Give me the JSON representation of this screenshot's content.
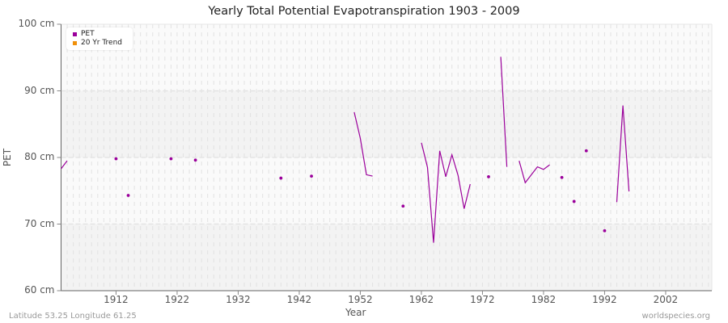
{
  "title": "Yearly Total Potential Evapotranspiration 1903 - 2009",
  "legend": [
    {
      "label": "PET",
      "color": "#9b009b"
    },
    {
      "label": "20 Yr Trend",
      "color": "#f0900a"
    }
  ],
  "footer": {
    "left": "Latitude 53.25 Longitude 61.25",
    "right": "worldspecies.org"
  },
  "axes": {
    "x_title": "Year",
    "y_title": "PET",
    "y_ticks": [
      "100 cm",
      "90 cm",
      "80 cm",
      "70 cm",
      "60 cm"
    ],
    "x_ticks": [
      "1912",
      "1922",
      "1932",
      "1942",
      "1952",
      "1962",
      "1972",
      "1982",
      "1992",
      "2002"
    ]
  },
  "chart_data": {
    "type": "line",
    "title": "Yearly Total Potential Evapotranspiration 1903 - 2009",
    "xlabel": "Year",
    "ylabel": "PET",
    "xlim": [
      1903,
      2009
    ],
    "ylim": [
      60,
      100
    ],
    "y_unit": "cm",
    "grid": true,
    "legend_position": "top-left",
    "series": [
      {
        "name": "PET",
        "color": "#9b009b",
        "points": [
          [
            1903,
            78.3
          ],
          [
            1904,
            79.5
          ],
          [
            1912,
            79.8
          ],
          [
            1914,
            74.3
          ],
          [
            1921,
            79.8
          ],
          [
            1925,
            79.6
          ],
          [
            1939,
            76.9
          ],
          [
            1944,
            77.2
          ],
          [
            1951,
            86.8
          ],
          [
            1952,
            82.9
          ],
          [
            1953,
            77.4
          ],
          [
            1954,
            77.2
          ],
          [
            1959,
            72.7
          ],
          [
            1962,
            82.2
          ],
          [
            1963,
            78.5
          ],
          [
            1964,
            67.2
          ],
          [
            1965,
            81.0
          ],
          [
            1966,
            77.1
          ],
          [
            1967,
            80.4
          ],
          [
            1968,
            77.3
          ],
          [
            1969,
            72.3
          ],
          [
            1970,
            76.0
          ],
          [
            1973,
            77.1
          ],
          [
            1975,
            95.1
          ],
          [
            1976,
            78.6
          ],
          [
            1978,
            79.5
          ],
          [
            1979,
            76.2
          ],
          [
            1980,
            77.4
          ],
          [
            1981,
            78.6
          ],
          [
            1982,
            78.2
          ],
          [
            1983,
            78.9
          ],
          [
            1985,
            77.0
          ],
          [
            1987,
            73.4
          ],
          [
            1989,
            81.0
          ],
          [
            1992,
            69.0
          ],
          [
            1994,
            73.3
          ],
          [
            1995,
            87.8
          ],
          [
            1996,
            74.9
          ]
        ]
      },
      {
        "name": "20 Yr Trend",
        "color": "#f0900a",
        "points": []
      }
    ]
  }
}
